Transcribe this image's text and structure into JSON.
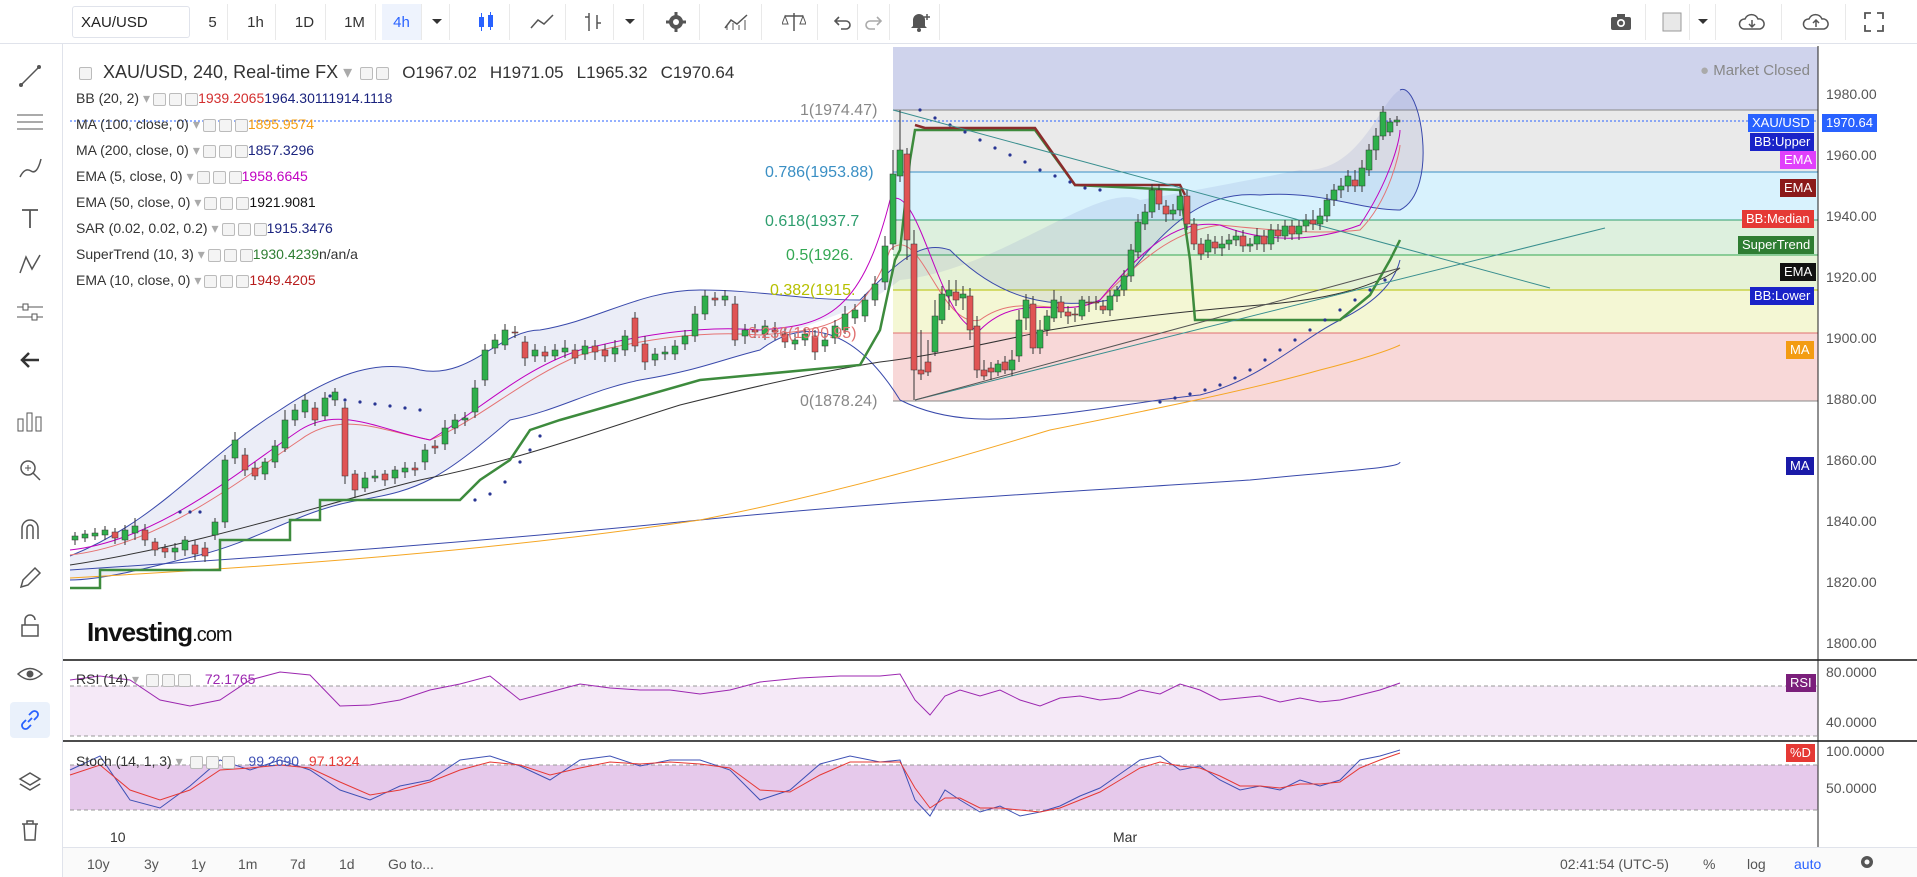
{
  "symbol_box": "XAU/USD",
  "intervals": [
    "5",
    "1h",
    "1D",
    "1M",
    "4h"
  ],
  "legend_main": {
    "title": "XAU/USD, 240, Real-time FX",
    "o_label": "O",
    "o": "1967.02",
    "h_label": "H",
    "h": "1971.05",
    "l_label": "L",
    "l": "1965.32",
    "c_label": "C",
    "c": "1970.64"
  },
  "indicators": [
    {
      "name": "BB (20, 2)",
      "values": [
        "1939.2065",
        "1964.3011",
        "1914.1118"
      ],
      "colors": [
        "#d32f2f",
        "#1a237e",
        "#1a237e"
      ]
    },
    {
      "name": "MA (100, close, 0)",
      "values": [
        "1895.9574"
      ],
      "colors": [
        "#f39c12"
      ]
    },
    {
      "name": "MA (200, close, 0)",
      "values": [
        "1857.3296"
      ],
      "colors": [
        "#1a237e"
      ]
    },
    {
      "name": "EMA (5, close, 0)",
      "values": [
        "1958.6645"
      ],
      "colors": [
        "#c000c0"
      ]
    },
    {
      "name": "EMA (50, close, 0)",
      "values": [
        "1921.9081"
      ],
      "colors": [
        "#111111"
      ]
    },
    {
      "name": "SAR (0.02, 0.02, 0.2)",
      "values": [
        "1915.3476"
      ],
      "colors": [
        "#1a237e"
      ]
    },
    {
      "name": "SuperTrend (10, 3)",
      "values": [
        "1930.4239",
        "n/a",
        "n/a"
      ],
      "colors": [
        "#2e7d32",
        "#333333",
        "#333333"
      ]
    },
    {
      "name": "EMA (10, close, 0)",
      "values": [
        "1949.4205"
      ],
      "colors": [
        "#b71c1c"
      ]
    }
  ],
  "market_status": "Market Closed",
  "price_ticks": [
    "1980.00",
    "1960.00",
    "1940.00",
    "1920.00",
    "1900.00",
    "1880.00",
    "1860.00",
    "1840.00",
    "1820.00",
    "1800.00"
  ],
  "price_tags": [
    {
      "label": "XAU/USD",
      "bg": "#2962ff"
    },
    {
      "label": "1970.64",
      "bg": "#2962ff"
    },
    {
      "label": "BB:Upper",
      "bg": "#1a23c8"
    },
    {
      "label": "EMA",
      "bg": "#e040fb"
    },
    {
      "label": "EMA",
      "bg": "#8b1a1a"
    },
    {
      "label": "BB:Median",
      "bg": "#e53935"
    },
    {
      "label": "SuperTrend",
      "bg": "#2e7d32"
    },
    {
      "label": "EMA",
      "bg": "#111111"
    },
    {
      "label": "BB:Lower",
      "bg": "#1a23c8"
    },
    {
      "label": "MA",
      "bg": "#f39c12"
    },
    {
      "label": "MA",
      "bg": "#1a1aa8"
    }
  ],
  "fib_levels": [
    {
      "label": "1(1974.47)",
      "color": "#888888"
    },
    {
      "label": "0.786(1953.88)",
      "color": "#3a8fc4"
    },
    {
      "label": "0.618(1937.7",
      "color": "#2e9e6e"
    },
    {
      "label": "0.5(1926.",
      "color": "#34a853"
    },
    {
      "label": "0.382(1915.",
      "color": "#b6c000"
    },
    {
      "label": "0.236(1900.95)",
      "color": "#e07070"
    },
    {
      "label": "0(1878.24)",
      "color": "#888888"
    }
  ],
  "rsi": {
    "name": "RSI (14)",
    "value": "72.1765",
    "ticks": [
      "80.0000",
      "40.0000"
    ],
    "tag": "RSI",
    "tag_bg": "#7b1f7b"
  },
  "stoch": {
    "name": "Stoch (14, 1, 3)",
    "values": [
      "99.2690",
      "97.1324"
    ],
    "ticks": [
      "100.0000",
      "50.0000"
    ],
    "tag": "%D",
    "tag_bg": "#e53935"
  },
  "x_labels": [
    "10",
    "Mar"
  ],
  "range_buttons": [
    "10y",
    "3y",
    "1y",
    "1m",
    "7d",
    "1d",
    "Go to..."
  ],
  "status_right": {
    "time": "02:41:54 (UTC-5)",
    "percent": "%",
    "log": "log",
    "auto": "auto"
  },
  "watermark": {
    "brand": "Investing",
    "suffix": ".com"
  }
}
